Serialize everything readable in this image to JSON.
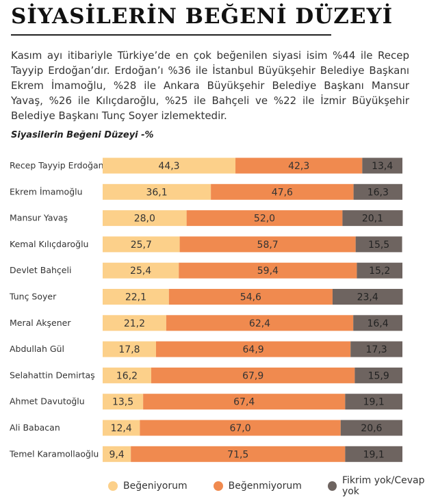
{
  "title": "SİYASİLERİN BEĞENİ DÜZEYİ",
  "intro": "Kasım ayı itibariyle Türkiye’de en çok beğenilen siyasi isim %44 ile Recep Tayyip Erdoğan’dır. Erdoğan’ı %36 ile İstanbul Büyükşehir Belediye Başkanı Ekrem İmamoğlu, %28 ile Ankara Büyükşehir Belediye Başkanı Mansur Yavaş, %26 ile Kılıçdaroğlu, %25 ile Bahçeli ve %22 ile İzmir Büyükşehir Belediye Başkanı Tunç Soyer izlemektedir.",
  "colors": {
    "begeniyorum": "#fcd08a",
    "begenmiyorum": "#f08a4f",
    "fikrim_yok": "#6e6460"
  },
  "chart_data": {
    "type": "bar",
    "stacked": true,
    "orientation": "horizontal",
    "title": "Siyasilerin Beğeni Düzeyi -%",
    "categories": [
      "Recep Tayyip Erdoğan",
      "Ekrem İmamoğlu",
      "Mansur Yavaş",
      "Kemal Kılıçdaroğlu",
      "Devlet Bahçeli",
      "Tunç Soyer",
      "Meral Akşener",
      "Abdullah Gül",
      "Selahattin Demirtaş",
      "Ahmet Davutoğlu",
      "Ali Babacan",
      "Temel Karamollaoğlu"
    ],
    "series": [
      {
        "name": "Beğeniyorum",
        "values": [
          44.3,
          36.1,
          28.0,
          25.7,
          25.4,
          22.1,
          21.2,
          17.8,
          16.2,
          13.5,
          12.4,
          9.4
        ],
        "labels": [
          "44,3",
          "36,1",
          "28,0",
          "25,7",
          "25,4",
          "22,1",
          "21,2",
          "17,8",
          "16,2",
          "13,5",
          "12,4",
          "9,4"
        ]
      },
      {
        "name": "Beğenmiyorum",
        "values": [
          42.3,
          47.6,
          52.0,
          58.7,
          59.4,
          54.6,
          62.4,
          64.9,
          67.9,
          67.4,
          67.0,
          71.5
        ],
        "labels": [
          "42,3",
          "47,6",
          "52,0",
          "58,7",
          "59,4",
          "54,6",
          "62,4",
          "64,9",
          "67,9",
          "67,4",
          "67,0",
          "71,5"
        ]
      },
      {
        "name": "Fikrim yok/Cevap yok",
        "values": [
          13.4,
          16.3,
          20.1,
          15.5,
          15.2,
          23.4,
          16.4,
          17.3,
          15.9,
          19.1,
          20.6,
          19.1
        ],
        "labels": [
          "13,4",
          "16,3",
          "20,1",
          "15,5",
          "15,2",
          "23,4",
          "16,4",
          "17,3",
          "15,9",
          "19,1",
          "20,6",
          "19,1"
        ]
      }
    ],
    "xlim": [
      0,
      100
    ],
    "legend": "bottom"
  }
}
